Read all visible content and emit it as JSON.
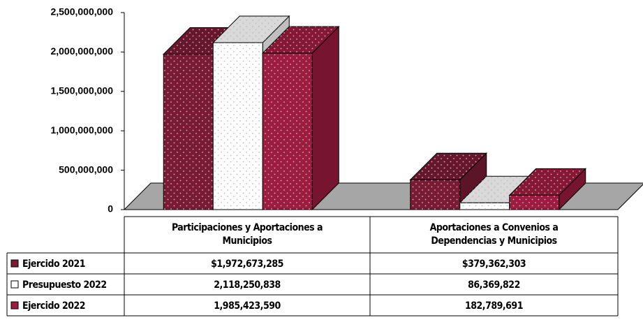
{
  "chart_data": {
    "type": "bar3d",
    "categories": [
      "Participaciones y Aportaciones a Municipios",
      "Aportaciones a Convenios a Dependencias y Municipios"
    ],
    "series": [
      {
        "name": "Ejercido 2021",
        "color": "#7a1a35",
        "values": [
          1972673285,
          379362303
        ],
        "value_labels": [
          "$1,972,673,285",
          "$379,362,303"
        ]
      },
      {
        "name": "Presupuesto 2022",
        "color": "#ffffff",
        "values": [
          2118250838,
          86369822
        ],
        "value_labels": [
          "2,118,250,838",
          "86,369,822"
        ]
      },
      {
        "name": "Ejercido 2022",
        "color": "#9e1c40",
        "values": [
          1985423590,
          182789691
        ],
        "value_labels": [
          "1,985,423,590",
          "182,789,691"
        ]
      }
    ],
    "ylim": [
      0,
      2500000000
    ],
    "yticks": [
      0,
      {
        "value": 500000000,
        "label": "500,000,000"
      },
      {
        "value": 1000000000,
        "label": "1,000,000,000"
      },
      {
        "value": 1500000000,
        "label": "1,500,000,000"
      },
      {
        "value": 2000000000,
        "label": "2,000,000,000"
      },
      {
        "value": 2500000000,
        "label": "2,500,000,000"
      }
    ],
    "floor_color": "#a6a6a6"
  }
}
